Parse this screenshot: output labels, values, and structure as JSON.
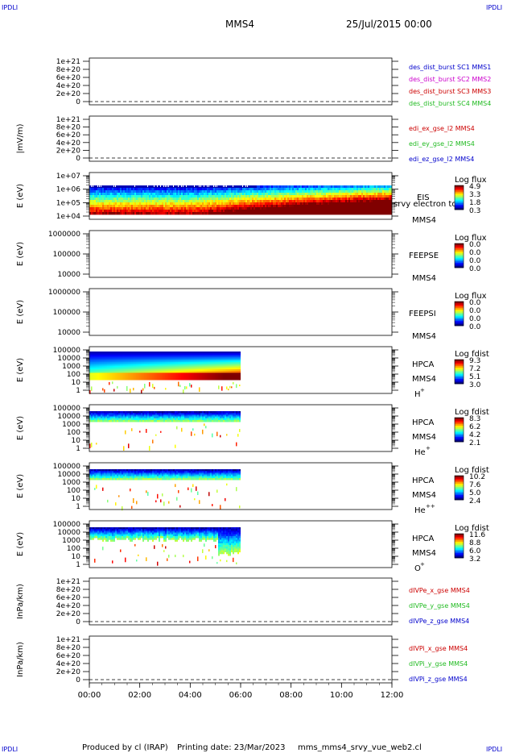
{
  "header": {
    "corner_tl": "IPDLI",
    "corner_tr": "IPDLI",
    "corner_bl": "IPDLI",
    "corner_br": "IPDLI",
    "title": "MMS4",
    "date": "25/Jul/2015 00:00"
  },
  "footer": {
    "produced": "Produced by cl (IRAP)",
    "printing": "Printing date: 23/Mar/2023",
    "file": "mms_mms4_srvy_vue_web2.cl"
  },
  "colors": {
    "blue": "#0000cc",
    "magenta": "#cc00cc",
    "red": "#cc0000",
    "green": "#22bb22"
  },
  "chart_data": [
    {
      "type": "line",
      "ylabel": "",
      "ticks": [
        "1e+21",
        "8e+20",
        "6e+20",
        "4e+20",
        "2e+20",
        "0"
      ],
      "ylim": [
        0,
        1e+21
      ],
      "series": [
        {
          "name": "des_dist_burst SC1 MMS1",
          "color": "#0000cc"
        },
        {
          "name": "des_dist_burst SC2 MMS2",
          "color": "#cc00cc"
        },
        {
          "name": "des_dist_burst SC3 MMS3",
          "color": "#cc0000"
        },
        {
          "name": "des_dist_burst SC4 MMS4",
          "color": "#22bb22"
        }
      ]
    },
    {
      "type": "line",
      "ylabel": "|mV/m)",
      "ticks": [
        "1e+21",
        "8e+20",
        "6e+20",
        "4e+20",
        "2e+20",
        "0"
      ],
      "ylim": [
        0,
        1e+21
      ],
      "series": [
        {
          "name": "edi_ex_gse_l2 MMS4",
          "color": "#cc0000"
        },
        {
          "name": "edi_ey_gse_l2 MMS4",
          "color": "#22bb22"
        },
        {
          "name": "edi_ez_gse_l2 MMS4",
          "color": "#0000cc"
        }
      ]
    },
    {
      "type": "heatmap",
      "ylabel": "E (eV)",
      "ticks": [
        "1e+07",
        "1e+06",
        "1e+05",
        "1e+04"
      ],
      "labels": [
        "EIS",
        "MMS4"
      ],
      "overlay": "srvy electron tof",
      "colorbar": {
        "title": "Log flux",
        "values": [
          "4.9",
          "3.3",
          "1.8",
          "0.3"
        ]
      },
      "data_end_hour": 12
    },
    {
      "type": "heatmap",
      "ylabel": "E (eV)",
      "ticks": [
        "1000000",
        "100000",
        "10000"
      ],
      "labels": [
        "FEEPSE",
        "MMS4"
      ],
      "colorbar": {
        "title": "Log flux",
        "values": [
          "0.0",
          "0.0",
          "0.0",
          "0.0"
        ]
      }
    },
    {
      "type": "heatmap",
      "ylabel": "E (eV)",
      "ticks": [
        "1000000",
        "100000",
        "10000"
      ],
      "labels": [
        "FEEPSI",
        "MMS4"
      ],
      "colorbar": {
        "title": "Log flux",
        "values": [
          "0.0",
          "0.0",
          "0.0",
          "0.0"
        ]
      }
    },
    {
      "type": "heatmap",
      "ylabel": "E (eV)",
      "ticks": [
        "100000",
        "10000",
        "1000",
        "100",
        "10",
        "1"
      ],
      "labels": [
        "HPCA",
        "MMS4"
      ],
      "species": "H",
      "species_sup": "+",
      "colorbar": {
        "title": "Log fdist",
        "values": [
          "9.3",
          "7.2",
          "5.1",
          "3.0"
        ]
      },
      "data_end_hour": 6
    },
    {
      "type": "heatmap",
      "ylabel": "E (eV)",
      "ticks": [
        "100000",
        "10000",
        "1000",
        "100",
        "10",
        "1"
      ],
      "labels": [
        "HPCA",
        "MMS4"
      ],
      "species": "He",
      "species_sup": "+",
      "colorbar": {
        "title": "Log fdist",
        "values": [
          "8.3",
          "6.2",
          "4.2",
          "2.1"
        ]
      },
      "data_end_hour": 6
    },
    {
      "type": "heatmap",
      "ylabel": "E (eV)",
      "ticks": [
        "100000",
        "10000",
        "1000",
        "100",
        "10",
        "1"
      ],
      "labels": [
        "HPCA",
        "MMS4"
      ],
      "species": "He",
      "species_sup": "++",
      "colorbar": {
        "title": "Log fdist",
        "values": [
          "10.2",
          "7.6",
          "5.0",
          "2.4"
        ]
      },
      "data_end_hour": 6
    },
    {
      "type": "heatmap",
      "ylabel": "E (eV)",
      "ticks": [
        "100000",
        "10000",
        "1000",
        "100",
        "10",
        "1"
      ],
      "labels": [
        "HPCA",
        "MMS4"
      ],
      "species": "O",
      "species_sup": "+",
      "colorbar": {
        "title": "Log fdist",
        "values": [
          "11.6",
          "8.8",
          "6.0",
          "3.2"
        ]
      },
      "data_end_hour": 6
    },
    {
      "type": "line",
      "ylabel": "InPa/km)",
      "ticks": [
        "1e+21",
        "8e+20",
        "6e+20",
        "4e+20",
        "2e+20",
        "0"
      ],
      "ylim": [
        0,
        1e+21
      ],
      "series": [
        {
          "name": "dIVPe_x_gse MMS4",
          "color": "#cc0000"
        },
        {
          "name": "dIVPe_y_gse MMS4",
          "color": "#22bb22"
        },
        {
          "name": "dIVPe_z_gse MMS4",
          "color": "#0000cc"
        }
      ]
    },
    {
      "type": "line",
      "ylabel": "InPa/km)",
      "ticks": [
        "1e+21",
        "8e+20",
        "6e+20",
        "4e+20",
        "2e+20",
        "0"
      ],
      "ylim": [
        0,
        1e+21
      ],
      "series": [
        {
          "name": "dIVPi_x_gse MMS4",
          "color": "#cc0000"
        },
        {
          "name": "dIVPi_y_gse MMS4",
          "color": "#22bb22"
        },
        {
          "name": "dIVPi_z_gse MMS4",
          "color": "#0000cc"
        }
      ]
    }
  ],
  "xaxis": {
    "labels": [
      "00:00",
      "02:00",
      "04:00",
      "06:00",
      "08:00",
      "10:00",
      "12:00"
    ],
    "range_hours": [
      0,
      12
    ]
  }
}
